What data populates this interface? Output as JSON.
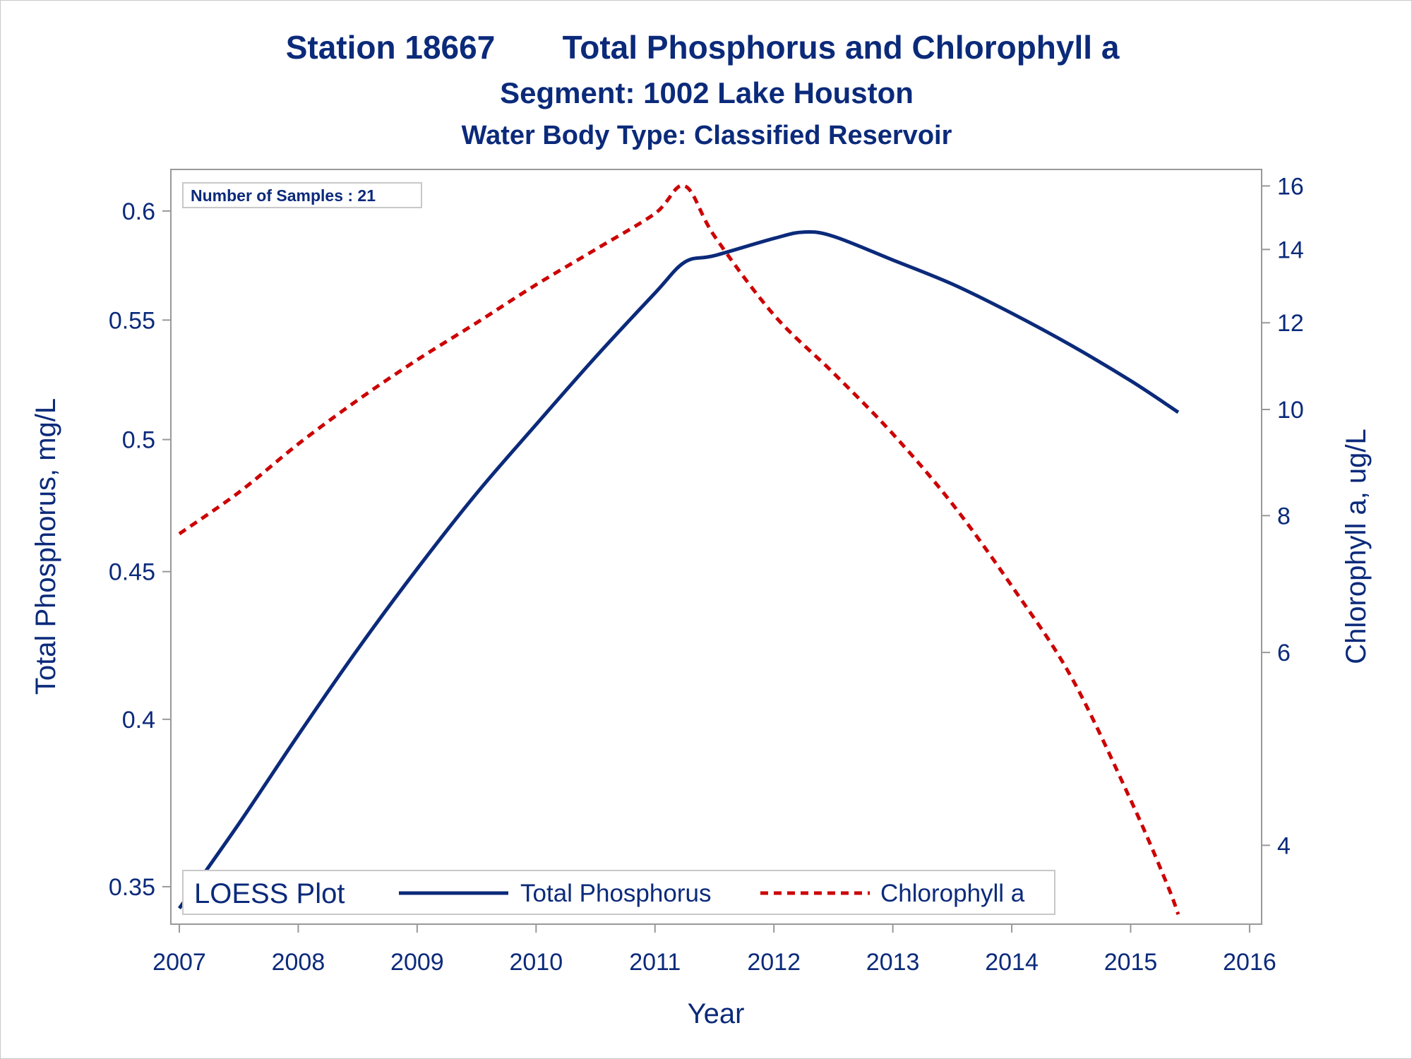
{
  "titles": {
    "line1_left": "Station 18667",
    "line1_right": "Total Phosphorus and Chlorophyll a",
    "line2": "Segment: 1002  Lake Houston",
    "line3": "Water Body Type: Classified Reservoir"
  },
  "inset": {
    "samples_label": "Number of Samples : 21"
  },
  "legend": {
    "title": "LOESS Plot",
    "items": [
      {
        "label": "Total Phosphorus",
        "style": "solid",
        "color": "#0b2a7a"
      },
      {
        "label": "Chlorophyll a",
        "style": "dashed",
        "color": "#cc0000"
      }
    ]
  },
  "chart_data": {
    "type": "line",
    "xlabel": "Year",
    "ylabel_left": "Total Phosphorus, mg/L",
    "ylabel_right": "Chlorophyll a, ug/L",
    "x_ticks": [
      2007,
      2008,
      2009,
      2010,
      2011,
      2012,
      2013,
      2014,
      2015,
      2016
    ],
    "x_tick_labels": [
      "2007",
      "2008",
      "2009",
      "2010",
      "2011",
      "2012",
      "2013",
      "2014",
      "2015",
      "2016"
    ],
    "xlim": [
      2007,
      2016.03
    ],
    "left_axis": {
      "scale": "log",
      "ylim": [
        0.342,
        0.615
      ],
      "ticks": [
        0.35,
        0.4,
        0.45,
        0.5,
        0.55,
        0.6
      ],
      "tick_labels": [
        "0.35",
        "0.4",
        "0.45",
        "0.5",
        "0.55",
        "0.6"
      ]
    },
    "right_axis": {
      "scale": "log",
      "ylim": [
        3.45,
        16.2
      ],
      "ticks": [
        4,
        6,
        8,
        10,
        12,
        14,
        16
      ],
      "tick_labels": [
        "4",
        "6",
        "8",
        "10",
        "12",
        "14",
        "16"
      ]
    },
    "grid": false,
    "legend_position": "bottom-inside",
    "series": [
      {
        "name": "Total Phosphorus",
        "axis": "left",
        "color": "#0b2a7a",
        "style": "solid",
        "x": [
          2007.0,
          2007.5,
          2008.0,
          2008.5,
          2009.0,
          2009.5,
          2010.0,
          2010.5,
          2011.0,
          2011.25,
          2011.5,
          2012.0,
          2012.25,
          2012.5,
          2013.0,
          2013.5,
          2014.0,
          2014.5,
          2015.0,
          2015.4
        ],
        "y": [
          0.344,
          0.368,
          0.395,
          0.423,
          0.451,
          0.479,
          0.506,
          0.534,
          0.562,
          0.576,
          0.579,
          0.587,
          0.59,
          0.588,
          0.577,
          0.566,
          0.553,
          0.539,
          0.524,
          0.511
        ]
      },
      {
        "name": "Chlorophyll a",
        "axis": "right",
        "color": "#cc0000",
        "style": "dashed",
        "x": [
          2007.0,
          2007.5,
          2008.0,
          2008.5,
          2009.0,
          2009.5,
          2010.0,
          2010.5,
          2011.0,
          2011.25,
          2011.5,
          2012.0,
          2012.5,
          2013.0,
          2013.5,
          2014.0,
          2014.5,
          2015.0,
          2015.3,
          2015.4
        ],
        "y": [
          7.7,
          8.4,
          9.3,
          10.2,
          11.1,
          12.0,
          13.0,
          14.0,
          15.1,
          16.0,
          14.4,
          12.2,
          10.8,
          9.5,
          8.2,
          6.9,
          5.7,
          4.4,
          3.7,
          3.46
        ]
      }
    ]
  }
}
